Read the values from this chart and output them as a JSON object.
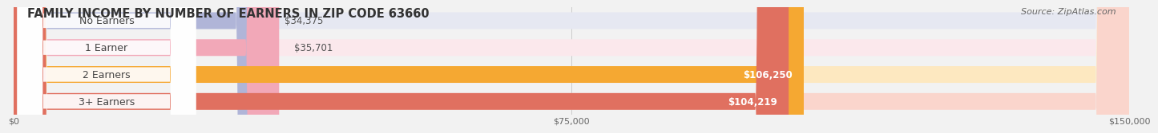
{
  "title": "FAMILY INCOME BY NUMBER OF EARNERS IN ZIP CODE 63660",
  "source": "Source: ZipAtlas.com",
  "categories": [
    "No Earners",
    "1 Earner",
    "2 Earners",
    "3+ Earners"
  ],
  "values": [
    34375,
    35701,
    106250,
    104219
  ],
  "bar_colors": [
    "#b0b5d8",
    "#f2a8b8",
    "#f5a832",
    "#e07060"
  ],
  "bar_bg_colors": [
    "#e6e8f2",
    "#fbe8ec",
    "#fde8c0",
    "#fad5cc"
  ],
  "value_label_inside": [
    false,
    false,
    true,
    true
  ],
  "value_labels": [
    "$34,375",
    "$35,701",
    "$106,250",
    "$104,219"
  ],
  "xlim": [
    0,
    150000
  ],
  "xtick_values": [
    0,
    75000,
    150000
  ],
  "xtick_labels": [
    "$0",
    "$75,000",
    "$150,000"
  ],
  "background_color": "#f2f2f2",
  "title_fontsize": 10.5,
  "source_fontsize": 8,
  "label_fontsize": 9,
  "value_fontsize": 8.5,
  "bar_height": 0.62,
  "bar_gap": 0.12
}
